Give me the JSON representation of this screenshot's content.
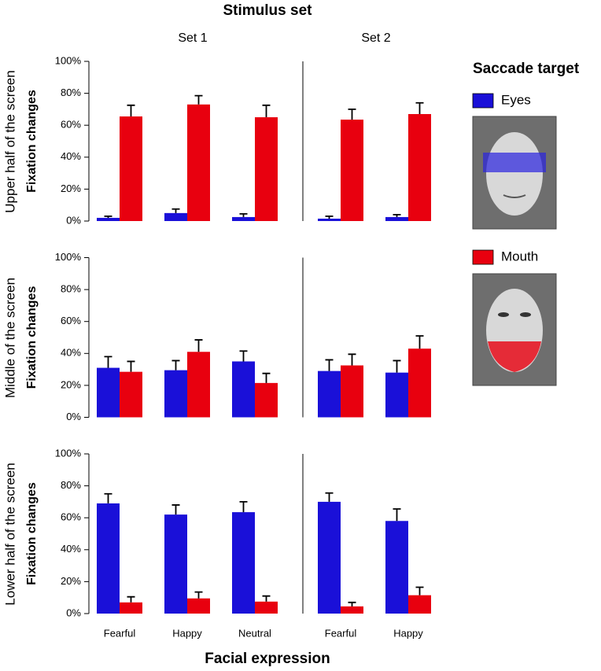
{
  "figure": {
    "title": "Stimulus set",
    "column_titles": [
      "Set 1",
      "Set 2"
    ],
    "row_titles": [
      "Upper half of the screen",
      "Middle of the screen",
      "Lower half of the screen"
    ],
    "x_label": "Facial expression",
    "legend_title": "Saccade target"
  },
  "chart_data": [
    {
      "type": "bar",
      "ylabel": "Fixation changes",
      "categories": [
        null,
        null,
        null
      ],
      "ylim": [
        0,
        100
      ],
      "yticks": [
        {
          "value": 0,
          "label": "0%"
        },
        {
          "value": 20,
          "label": "20%"
        },
        {
          "value": 40,
          "label": "40%"
        },
        {
          "value": 60,
          "label": "60%"
        },
        {
          "value": 80,
          "label": "80%"
        },
        {
          "value": 100,
          "label": "100%"
        }
      ],
      "series": [
        {
          "name": "Eyes",
          "color": "#1a10d8",
          "values": [
            2,
            5,
            2.5
          ],
          "errors": [
            1,
            2.5,
            2
          ]
        },
        {
          "name": "Mouth",
          "color": "#e8000f",
          "values": [
            65.5,
            73,
            65
          ],
          "errors": [
            7,
            5.5,
            7.5
          ]
        }
      ]
    },
    {
      "type": "bar",
      "categories": [
        null,
        null
      ],
      "ylim": [
        0,
        100
      ],
      "series": [
        {
          "name": "Eyes",
          "color": "#1a10d8",
          "values": [
            1.5,
            2.5
          ],
          "errors": [
            1.5,
            1.5
          ]
        },
        {
          "name": "Mouth",
          "color": "#e8000f",
          "values": [
            63.5,
            67
          ],
          "errors": [
            6.5,
            7
          ]
        }
      ]
    },
    {
      "type": "bar",
      "ylabel": "Fixation changes",
      "categories": [
        null,
        null,
        null
      ],
      "ylim": [
        0,
        100
      ],
      "yticks": [
        {
          "value": 0,
          "label": "0%"
        },
        {
          "value": 20,
          "label": "20%"
        },
        {
          "value": 40,
          "label": "40%"
        },
        {
          "value": 60,
          "label": "60%"
        },
        {
          "value": 80,
          "label": "80%"
        },
        {
          "value": 100,
          "label": "100%"
        }
      ],
      "series": [
        {
          "name": "Eyes",
          "color": "#1a10d8",
          "values": [
            31,
            29.5,
            35
          ],
          "errors": [
            7,
            6,
            6.5
          ]
        },
        {
          "name": "Mouth",
          "color": "#e8000f",
          "values": [
            28.5,
            41,
            21.5
          ],
          "errors": [
            6.5,
            7.5,
            6
          ]
        }
      ]
    },
    {
      "type": "bar",
      "categories": [
        null,
        null
      ],
      "ylim": [
        0,
        100
      ],
      "series": [
        {
          "name": "Eyes",
          "color": "#1a10d8",
          "values": [
            29,
            28
          ],
          "errors": [
            7,
            7.5
          ]
        },
        {
          "name": "Mouth",
          "color": "#e8000f",
          "values": [
            32.5,
            43
          ],
          "errors": [
            7,
            8
          ]
        }
      ]
    },
    {
      "type": "bar",
      "ylabel": "Fixation changes",
      "categories": [
        "Fearful",
        "Happy",
        "Neutral"
      ],
      "ylim": [
        0,
        100
      ],
      "yticks": [
        {
          "value": 0,
          "label": "0%"
        },
        {
          "value": 20,
          "label": "20%"
        },
        {
          "value": 40,
          "label": "40%"
        },
        {
          "value": 60,
          "label": "60%"
        },
        {
          "value": 80,
          "label": "80%"
        },
        {
          "value": 100,
          "label": "100%"
        }
      ],
      "series": [
        {
          "name": "Eyes",
          "color": "#1a10d8",
          "values": [
            69,
            62,
            63.5
          ],
          "errors": [
            6,
            6,
            6.5
          ]
        },
        {
          "name": "Mouth",
          "color": "#e8000f",
          "values": [
            7,
            9.5,
            7.5
          ],
          "errors": [
            3.5,
            4,
            3.5
          ]
        }
      ]
    },
    {
      "type": "bar",
      "categories": [
        "Fearful",
        "Happy"
      ],
      "ylim": [
        0,
        100
      ],
      "series": [
        {
          "name": "Eyes",
          "color": "#1a10d8",
          "values": [
            70,
            58
          ],
          "errors": [
            5.5,
            7.5
          ]
        },
        {
          "name": "Mouth",
          "color": "#e8000f",
          "values": [
            4.5,
            11.5
          ],
          "errors": [
            2.5,
            5
          ]
        }
      ]
    }
  ]
}
